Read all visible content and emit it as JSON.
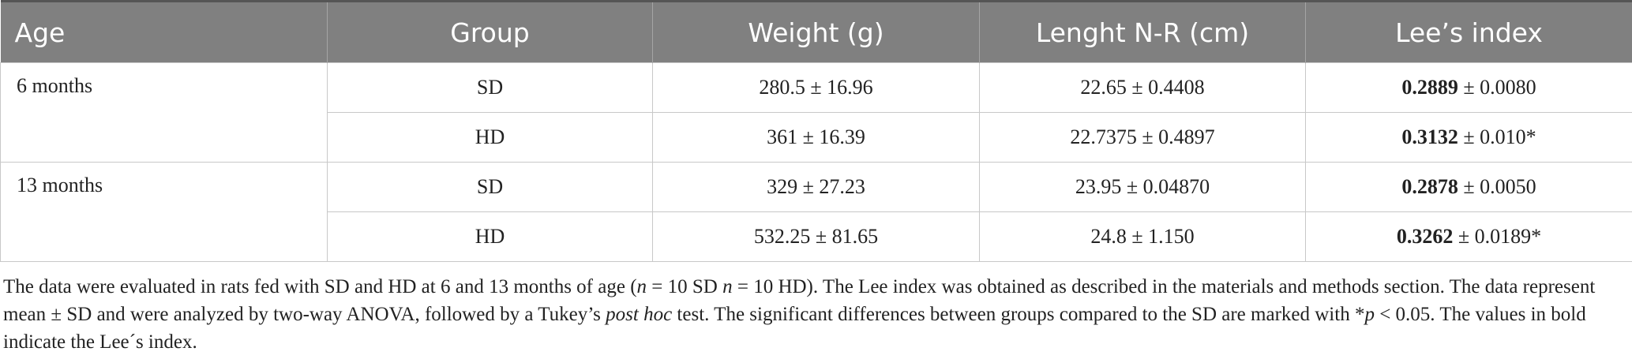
{
  "table": {
    "header": [
      "Age",
      "Group",
      "Weight (g)",
      "Lenght N-R (cm)",
      "Lee’s index"
    ],
    "sections": [
      {
        "age": "6 months",
        "rows": [
          {
            "group": "SD",
            "weight": "280.5 ± 16.96",
            "length": "22.65 ± 0.4408",
            "lee": {
              "bold": "0.2889",
              "rest": " ± 0.0080"
            }
          },
          {
            "group": "HD",
            "weight": "361 ± 16.39",
            "length": "22.7375 ± 0.4897",
            "lee": {
              "bold": "0.3132",
              "rest": " ± 0.010*"
            }
          }
        ]
      },
      {
        "age": "13 months",
        "rows": [
          {
            "group": "SD",
            "weight": "329 ± 27.23",
            "length": "23.95 ± 0.04870",
            "lee": {
              "bold": "0.2878",
              "rest": " ± 0.0050"
            }
          },
          {
            "group": "HD",
            "weight": "532.25 ± 81.65",
            "length": "24.8 ± 1.150",
            "lee": {
              "bold": "0.3262",
              "rest": " ± 0.0189*"
            }
          }
        ]
      }
    ]
  },
  "footnote": [
    {
      "text": "The data were evaluated in rats fed with SD and HD at 6 and 13 months of age (",
      "italic": false
    },
    {
      "text": "n",
      "italic": true
    },
    {
      "text": " = 10 SD ",
      "italic": false
    },
    {
      "text": "n",
      "italic": true
    },
    {
      "text": " = 10 HD). The Lee index was obtained as described in the materials and methods section. The data represent mean ± SD and were analyzed by two-way ANOVA, followed by a Tukey’s ",
      "italic": false
    },
    {
      "text": "post hoc",
      "italic": true
    },
    {
      "text": " test. The significant differences between groups compared to the SD are marked with *",
      "italic": false
    },
    {
      "text": "p",
      "italic": true
    },
    {
      "text": " < 0.05. The values in bold indicate the Lee´s index.",
      "italic": false
    }
  ]
}
